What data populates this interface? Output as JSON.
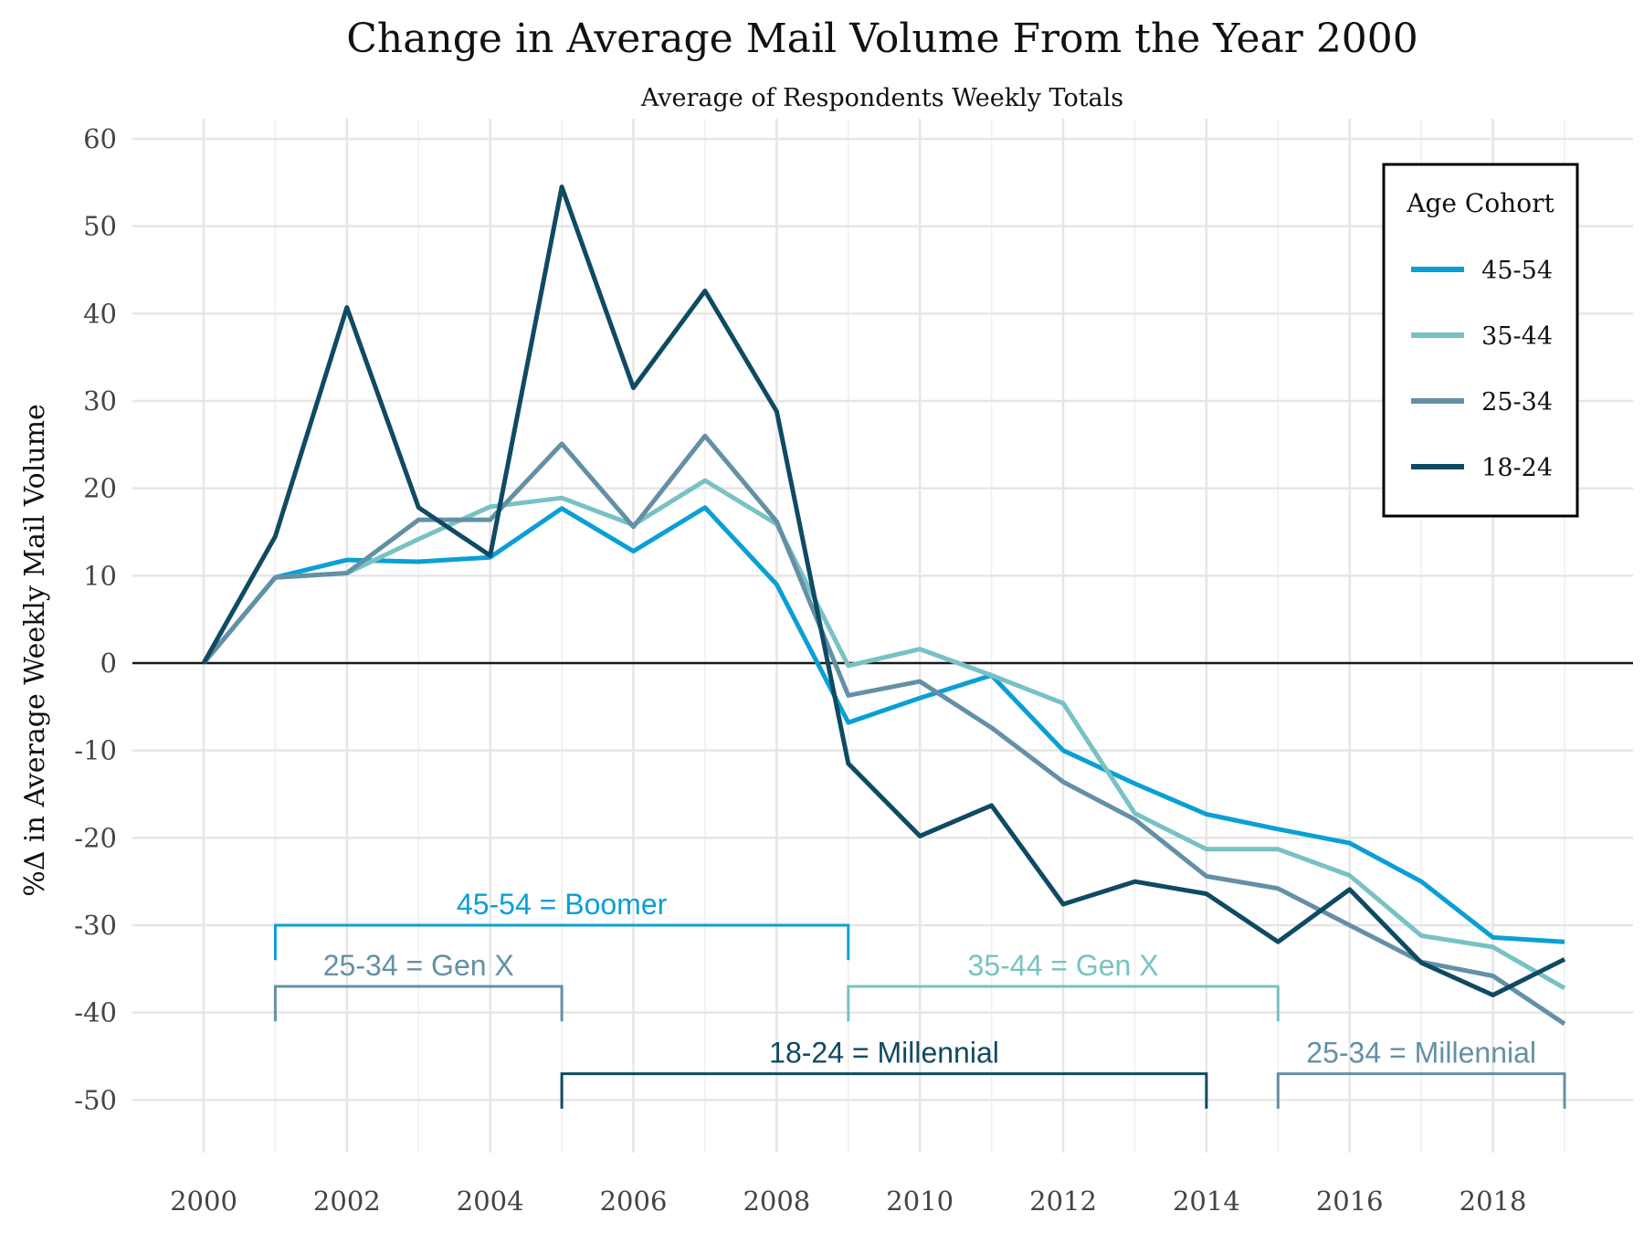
{
  "chart_data": {
    "type": "line",
    "title": "Change in Average Mail Volume From the Year 2000",
    "subtitle": "Average of Respondents Weekly Totals",
    "xlabel": "",
    "ylabel": "%Δ in Average Weekly Mail Volume",
    "xlim": [
      1999.3,
      2020.0
    ],
    "ylim": [
      -55,
      60
    ],
    "x_ticks": [
      2000,
      2002,
      2004,
      2006,
      2008,
      2010,
      2012,
      2014,
      2016,
      2018
    ],
    "x_tick_labels": [
      "2000",
      "2002",
      "2004",
      "2006",
      "2008",
      "2010",
      "2012",
      "2014",
      "2016",
      "2018"
    ],
    "y_ticks": [
      60,
      50,
      40,
      30,
      20,
      10,
      0,
      -10,
      -20,
      -30,
      -40,
      -50
    ],
    "y_tick_labels": [
      "60",
      "50",
      "40",
      "30",
      "20",
      "10",
      "0",
      "-10",
      "-20",
      "-30",
      "-40",
      "-50"
    ],
    "grid": true,
    "zero_line": true,
    "x": [
      2000,
      2001,
      2002,
      2003,
      2004,
      2005,
      2006,
      2007,
      2008,
      2009,
      2010,
      2011,
      2012,
      2013,
      2014,
      2015,
      2016,
      2017,
      2018,
      2019
    ],
    "legend": {
      "title": "Age Cohort",
      "position": "top-right"
    },
    "series": [
      {
        "name": "45-54",
        "color": "#0a9fd6",
        "values": [
          0,
          9.8,
          11.8,
          11.6,
          12.1,
          17.7,
          12.8,
          17.8,
          9.0,
          -6.8,
          -4.0,
          -1.4,
          -10.0,
          -13.8,
          -17.3,
          -19.0,
          -20.6,
          -25.0,
          -31.4,
          -31.9
        ]
      },
      {
        "name": "35-44",
        "color": "#78c2c3",
        "values": [
          0,
          9.8,
          10.3,
          14.2,
          17.9,
          18.9,
          15.8,
          20.9,
          15.9,
          -0.3,
          1.6,
          -1.4,
          -4.6,
          -17.2,
          -21.3,
          -21.3,
          -24.3,
          -31.2,
          -32.5,
          -37.2
        ]
      },
      {
        "name": "25-34",
        "color": "#6490a6",
        "values": [
          0,
          9.8,
          10.3,
          16.4,
          16.4,
          25.1,
          15.6,
          26.0,
          16.2,
          -3.7,
          -2.1,
          -7.4,
          -13.6,
          -17.9,
          -24.4,
          -25.8,
          -30.0,
          -34.2,
          -35.8,
          -41.3
        ]
      },
      {
        "name": "18-24",
        "color": "#0f4a63",
        "values": [
          0,
          14.5,
          40.7,
          17.8,
          12.3,
          54.5,
          31.5,
          42.6,
          28.8,
          -11.5,
          -19.8,
          -16.3,
          -27.6,
          -25.0,
          -26.4,
          -31.9,
          -25.9,
          -34.3,
          -38.0,
          -33.9
        ]
      }
    ],
    "annotations": [
      {
        "text": "45-54 = Boomer",
        "x_start": 2001,
        "x_end": 2009,
        "y": -30,
        "y_tick_end": -34,
        "color": "#0a9fd6"
      },
      {
        "text": "25-34 = Gen X",
        "x_start": 2001,
        "x_end": 2005,
        "y": -37,
        "y_tick_end": -41,
        "color": "#6490a6"
      },
      {
        "text": "35-44 = Gen X",
        "x_start": 2009,
        "x_end": 2015,
        "y": -37,
        "y_tick_end": -41,
        "color": "#78c2c3"
      },
      {
        "text": "18-24 = Millennial",
        "x_start": 2005,
        "x_end": 2014,
        "y": -47,
        "y_tick_end": -51,
        "color": "#0f4a63"
      },
      {
        "text": "25-34 = Millennial",
        "x_start": 2015,
        "x_end": 2019,
        "y": -47,
        "y_tick_end": -51,
        "color": "#6490a6"
      }
    ]
  }
}
